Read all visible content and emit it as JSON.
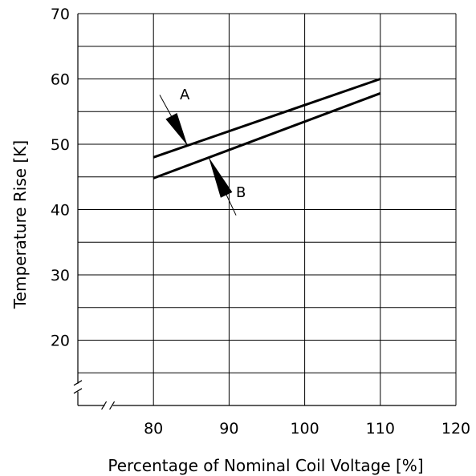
{
  "chart_data": {
    "type": "line",
    "title": "",
    "xlabel": "Percentage of Nominal Coil Voltage [%]",
    "ylabel": "Temperature Rise [K]",
    "xlim": [
      70,
      120
    ],
    "ylim": [
      10,
      70
    ],
    "axis_break": true,
    "x_ticks": [
      80,
      90,
      100,
      110,
      120
    ],
    "y_ticks": [
      20,
      30,
      40,
      50,
      60,
      70
    ],
    "grid": true,
    "series": [
      {
        "name": "A",
        "x": [
          80,
          110
        ],
        "y": [
          48,
          60
        ]
      },
      {
        "name": "B",
        "x": [
          80,
          110
        ],
        "y": [
          44.8,
          57.8
        ]
      }
    ],
    "annotations": [
      {
        "label": "A",
        "points_to_series": "A",
        "at": {
          "x": 84.5,
          "y": 49.8
        }
      },
      {
        "label": "B",
        "points_to_series": "B",
        "at": {
          "x": 87.3,
          "y": 48
        }
      }
    ]
  }
}
